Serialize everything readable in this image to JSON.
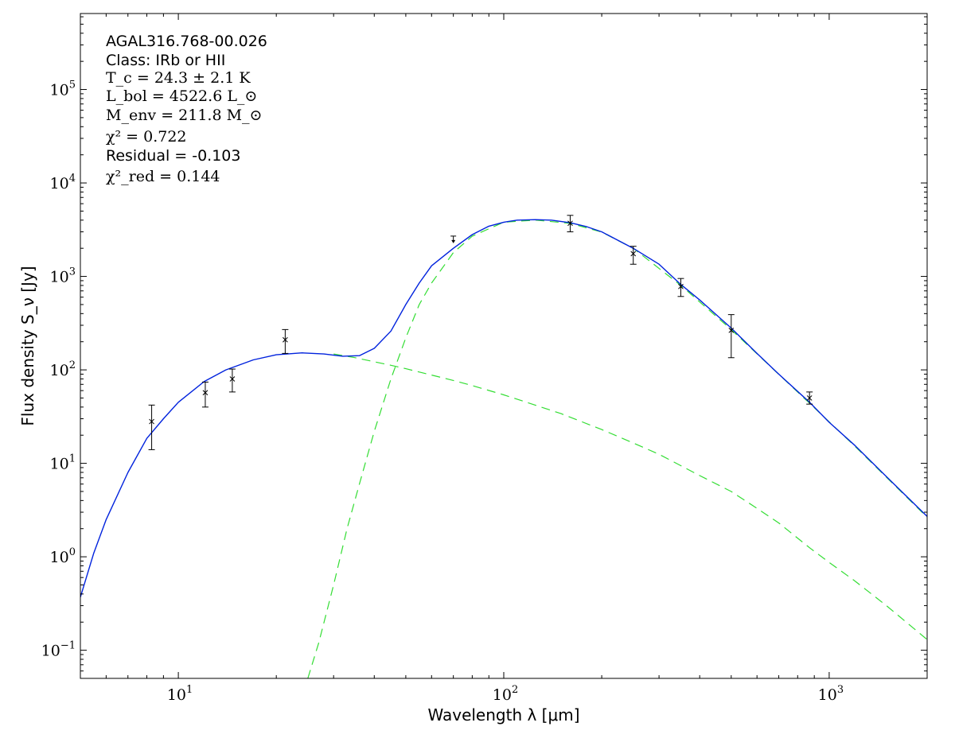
{
  "chart_data": {
    "type": "line",
    "xscale": "log",
    "yscale": "log",
    "xlim": [
      5,
      2000
    ],
    "ylim": [
      0.05,
      650000
    ],
    "grid": false,
    "xlabel": "Wavelength λ [μm]",
    "ylabel": "Flux density S_ν [Jy]",
    "x_ticks": [
      {
        "value": 10,
        "base": "10",
        "exp": "1"
      },
      {
        "value": 100,
        "base": "10",
        "exp": "2"
      },
      {
        "value": 1000,
        "base": "10",
        "exp": "3"
      }
    ],
    "y_ticks": [
      {
        "value": 0.1,
        "base": "10",
        "exp": "−1"
      },
      {
        "value": 1,
        "base": "10",
        "exp": "0"
      },
      {
        "value": 10,
        "base": "10",
        "exp": "1"
      },
      {
        "value": 100,
        "base": "10",
        "exp": "2"
      },
      {
        "value": 1000,
        "base": "10",
        "exp": "3"
      },
      {
        "value": 10000,
        "base": "10",
        "exp": "4"
      },
      {
        "value": 100000,
        "base": "10",
        "exp": "5"
      }
    ],
    "annotations": [
      {
        "kind": "plain",
        "text": "AGAL316.768-00.026"
      },
      {
        "kind": "plain",
        "text": "Class: IRb or HII"
      },
      {
        "kind": "math",
        "text": "T_c = 24.3 ± 2.1 K"
      },
      {
        "kind": "math",
        "text": "L_bol = 4522.6 L_⊙"
      },
      {
        "kind": "math",
        "text": "M_env = 211.8 M_⊙"
      },
      {
        "kind": "math",
        "text": "χ² = 0.722"
      },
      {
        "kind": "plain",
        "text": "Residual = -0.103"
      },
      {
        "kind": "math",
        "text": "χ²_red = 0.144"
      }
    ],
    "colors": {
      "total": "#0022dd",
      "components": "#33dd33",
      "points": "#000000"
    },
    "measurements": [
      {
        "x": 8.28,
        "y": 28,
        "ylo": 14,
        "yhi": 42
      },
      {
        "x": 12.1,
        "y": 57,
        "ylo": 40,
        "yhi": 74
      },
      {
        "x": 14.65,
        "y": 80,
        "ylo": 58,
        "yhi": 102
      },
      {
        "x": 21.3,
        "y": 210,
        "ylo": 150,
        "yhi": 270
      },
      {
        "x": 160,
        "y": 3700,
        "ylo": 3000,
        "yhi": 4500
      },
      {
        "x": 250,
        "y": 1750,
        "ylo": 1350,
        "yhi": 2100
      },
      {
        "x": 350,
        "y": 780,
        "ylo": 610,
        "yhi": 950
      },
      {
        "x": 500,
        "y": 265,
        "ylo": 135,
        "yhi": 390
      },
      {
        "x": 870,
        "y": 50,
        "ylo": 43,
        "yhi": 58
      }
    ],
    "upper_limits": [
      {
        "x": 70,
        "y": 2700
      }
    ],
    "series": [
      {
        "style": "solid",
        "x": [
          5,
          5.5,
          6,
          7,
          8,
          9,
          10,
          12,
          14,
          17,
          20,
          24,
          28,
          32,
          36,
          40,
          45,
          50,
          55,
          60,
          70,
          80,
          90,
          100,
          110,
          125,
          140,
          160,
          180,
          200,
          250,
          300,
          350,
          400,
          500,
          600,
          700,
          870,
          1000,
          1200,
          1500,
          2000
        ],
        "y": [
          0.37,
          1.1,
          2.5,
          8,
          18.5,
          30,
          45,
          75,
          100,
          128,
          145,
          152,
          148,
          140,
          142,
          170,
          260,
          500,
          850,
          1300,
          2000,
          2800,
          3450,
          3800,
          4000,
          4050,
          4000,
          3750,
          3400,
          3000,
          2000,
          1350,
          820,
          560,
          280,
          150,
          90,
          45,
          27.5,
          15.5,
          7.2,
          2.7
        ]
      },
      {
        "style": "dashed",
        "x": [
          30,
          35,
          40,
          45,
          50,
          60,
          70,
          80,
          100,
          125,
          150,
          200,
          250,
          300,
          400,
          500,
          600,
          700,
          870,
          1000,
          1200,
          1500,
          2000
        ],
        "y": [
          148,
          135,
          122,
          112,
          103,
          88,
          77,
          68,
          54,
          42,
          34,
          23,
          16.5,
          12.5,
          7.4,
          5,
          3.3,
          2.3,
          1.25,
          0.87,
          0.55,
          0.3,
          0.13
        ]
      },
      {
        "style": "dashed",
        "x": [
          25,
          27,
          30,
          33,
          36,
          40,
          45,
          50,
          55,
          60,
          70,
          80,
          100,
          125,
          160,
          200,
          250,
          350,
          500,
          870,
          1200,
          2000
        ],
        "y": [
          0.05,
          0.12,
          0.5,
          2,
          6,
          22,
          80,
          220,
          500,
          850,
          1800,
          2700,
          3800,
          4000,
          3700,
          2980,
          2000,
          800,
          270,
          44,
          15.2,
          2.65
        ]
      }
    ]
  }
}
